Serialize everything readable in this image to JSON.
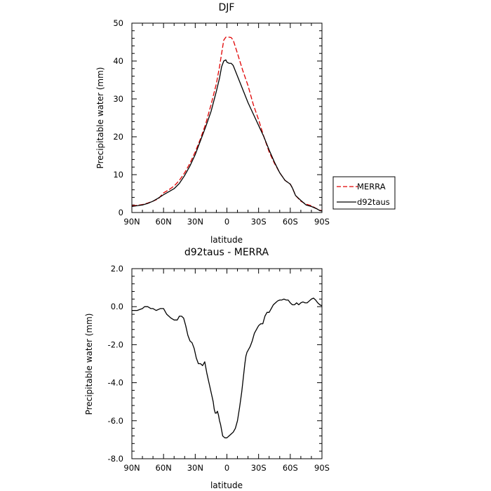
{
  "chart_data": [
    {
      "type": "line",
      "title": "DJF",
      "xlabel": "latitude",
      "ylabel": "Precipitable water (mm)",
      "xlim": [
        -90,
        90
      ],
      "ylim": [
        0,
        50
      ],
      "x_ticks": [
        {
          "value": -90,
          "label": "90N"
        },
        {
          "value": -60,
          "label": "60N"
        },
        {
          "value": -30,
          "label": "30N"
        },
        {
          "value": 0,
          "label": "0"
        },
        {
          "value": 30,
          "label": "30S"
        },
        {
          "value": 60,
          "label": "60S"
        },
        {
          "value": 90,
          "label": "90S"
        }
      ],
      "y_ticks": [
        {
          "value": 0,
          "label": "0"
        },
        {
          "value": 10,
          "label": "10"
        },
        {
          "value": 20,
          "label": "20"
        },
        {
          "value": 30,
          "label": "30"
        },
        {
          "value": 40,
          "label": "40"
        },
        {
          "value": 50,
          "label": "50"
        }
      ],
      "legend": {
        "placement": "right",
        "entries": [
          "MERRA",
          "d92taus"
        ]
      },
      "series": [
        {
          "name": "MERRA",
          "color": "#e00000",
          "dash": true,
          "x": [
            -90,
            -85,
            -80,
            -75,
            -70,
            -65,
            -60,
            -55,
            -50,
            -45,
            -40,
            -35,
            -30,
            -25,
            -20,
            -15,
            -10,
            -7,
            -5,
            -3,
            -1,
            0,
            2,
            4,
            6,
            10,
            15,
            20,
            25,
            30,
            35,
            40,
            45,
            50,
            55,
            60,
            62,
            65,
            70,
            75,
            80,
            85,
            88,
            90
          ],
          "y": [
            1.8,
            1.9,
            2.1,
            2.5,
            3.0,
            3.6,
            5.2,
            6.0,
            7.0,
            8.5,
            10.5,
            13.0,
            16.0,
            19.5,
            23.5,
            28.5,
            34.0,
            38.5,
            42.0,
            45.5,
            46.3,
            46.3,
            46.3,
            46.2,
            45.5,
            42.0,
            37.5,
            33.5,
            28.5,
            24.5,
            20.0,
            16.0,
            13.0,
            10.5,
            8.5,
            7.5,
            6.5,
            4.5,
            3.0,
            2.2,
            1.8,
            1.0,
            0.6,
            0.5
          ]
        },
        {
          "name": "d92taus",
          "color": "#000000",
          "dash": false,
          "x": [
            -90,
            -85,
            -80,
            -75,
            -70,
            -65,
            -60,
            -55,
            -50,
            -45,
            -40,
            -35,
            -30,
            -25,
            -20,
            -15,
            -10,
            -7,
            -5,
            -3,
            -1,
            0,
            2,
            4,
            6,
            10,
            15,
            20,
            25,
            30,
            35,
            40,
            45,
            50,
            55,
            60,
            62,
            65,
            70,
            75,
            80,
            85,
            88,
            90
          ],
          "y": [
            1.6,
            1.8,
            2.0,
            2.4,
            3.0,
            3.8,
            4.7,
            5.5,
            6.3,
            7.7,
            9.8,
            12.3,
            15.3,
            19.0,
            22.7,
            26.7,
            32.0,
            35.5,
            38.5,
            40.0,
            40.3,
            39.7,
            39.4,
            39.4,
            38.8,
            36.0,
            32.5,
            29.0,
            26.0,
            23.0,
            20.0,
            16.5,
            13.3,
            10.5,
            8.5,
            7.5,
            6.5,
            4.5,
            3.2,
            2.0,
            1.6,
            1.0,
            0.5,
            0.4
          ]
        }
      ]
    },
    {
      "type": "line",
      "title": "d92taus - MERRA",
      "xlabel": "latitude",
      "ylabel": "Precipitable water (mm)",
      "xlim": [
        -90,
        90
      ],
      "ylim": [
        -8,
        2
      ],
      "x_ticks": [
        {
          "value": -90,
          "label": "90N"
        },
        {
          "value": -60,
          "label": "60N"
        },
        {
          "value": -30,
          "label": "30N"
        },
        {
          "value": 0,
          "label": "0"
        },
        {
          "value": 30,
          "label": "30S"
        },
        {
          "value": 60,
          "label": "60S"
        },
        {
          "value": 90,
          "label": "90S"
        }
      ],
      "y_ticks": [
        {
          "value": 2,
          "label": "2.0"
        },
        {
          "value": 0,
          "label": "0.0"
        },
        {
          "value": -2,
          "label": "-2.0"
        },
        {
          "value": -4,
          "label": "-4.0"
        },
        {
          "value": -6,
          "label": "-6.0"
        },
        {
          "value": -8,
          "label": "-8.0"
        }
      ],
      "series": [
        {
          "color": "#000000",
          "dash": false,
          "x": [
            -90,
            -85,
            -80,
            -78,
            -75,
            -72,
            -70,
            -67,
            -63,
            -60,
            -57,
            -53,
            -50,
            -47,
            -45,
            -43,
            -41,
            -39,
            -37,
            -35,
            -33,
            -31,
            -29,
            -27,
            -25,
            -23,
            -21,
            -19,
            -17,
            -15,
            -13,
            -12,
            -11,
            -10,
            -9,
            -8,
            -7,
            -6,
            -5,
            -4,
            -2,
            0,
            2,
            4,
            6,
            8,
            10,
            12,
            14,
            16,
            17,
            18,
            19,
            20,
            22,
            24,
            26,
            28,
            30,
            32,
            34,
            36,
            38,
            40,
            42,
            44,
            46,
            48,
            50,
            52,
            54,
            56,
            58,
            60,
            62,
            64,
            66,
            68,
            70,
            72,
            74,
            76,
            78,
            80,
            82,
            84,
            86,
            88,
            90
          ],
          "y": [
            -0.2,
            -0.2,
            -0.1,
            0.0,
            0.0,
            -0.1,
            -0.1,
            -0.2,
            -0.1,
            -0.1,
            -0.4,
            -0.6,
            -0.7,
            -0.7,
            -0.5,
            -0.5,
            -0.6,
            -1.0,
            -1.5,
            -1.8,
            -1.9,
            -2.2,
            -2.7,
            -3.0,
            -3.0,
            -3.1,
            -2.9,
            -3.5,
            -4.0,
            -4.5,
            -5.0,
            -5.4,
            -5.6,
            -5.6,
            -5.5,
            -5.7,
            -6.0,
            -6.2,
            -6.5,
            -6.8,
            -6.9,
            -6.9,
            -6.8,
            -6.7,
            -6.6,
            -6.4,
            -6.0,
            -5.3,
            -4.5,
            -3.5,
            -3.0,
            -2.6,
            -2.4,
            -2.3,
            -2.1,
            -1.8,
            -1.4,
            -1.2,
            -1.0,
            -0.9,
            -0.9,
            -0.5,
            -0.3,
            -0.3,
            -0.1,
            0.1,
            0.2,
            0.3,
            0.35,
            0.35,
            0.4,
            0.35,
            0.35,
            0.2,
            0.1,
            0.1,
            0.2,
            0.1,
            0.2,
            0.25,
            0.2,
            0.2,
            0.3,
            0.4,
            0.45,
            0.35,
            0.2,
            0.1,
            0.05
          ]
        }
      ]
    }
  ]
}
